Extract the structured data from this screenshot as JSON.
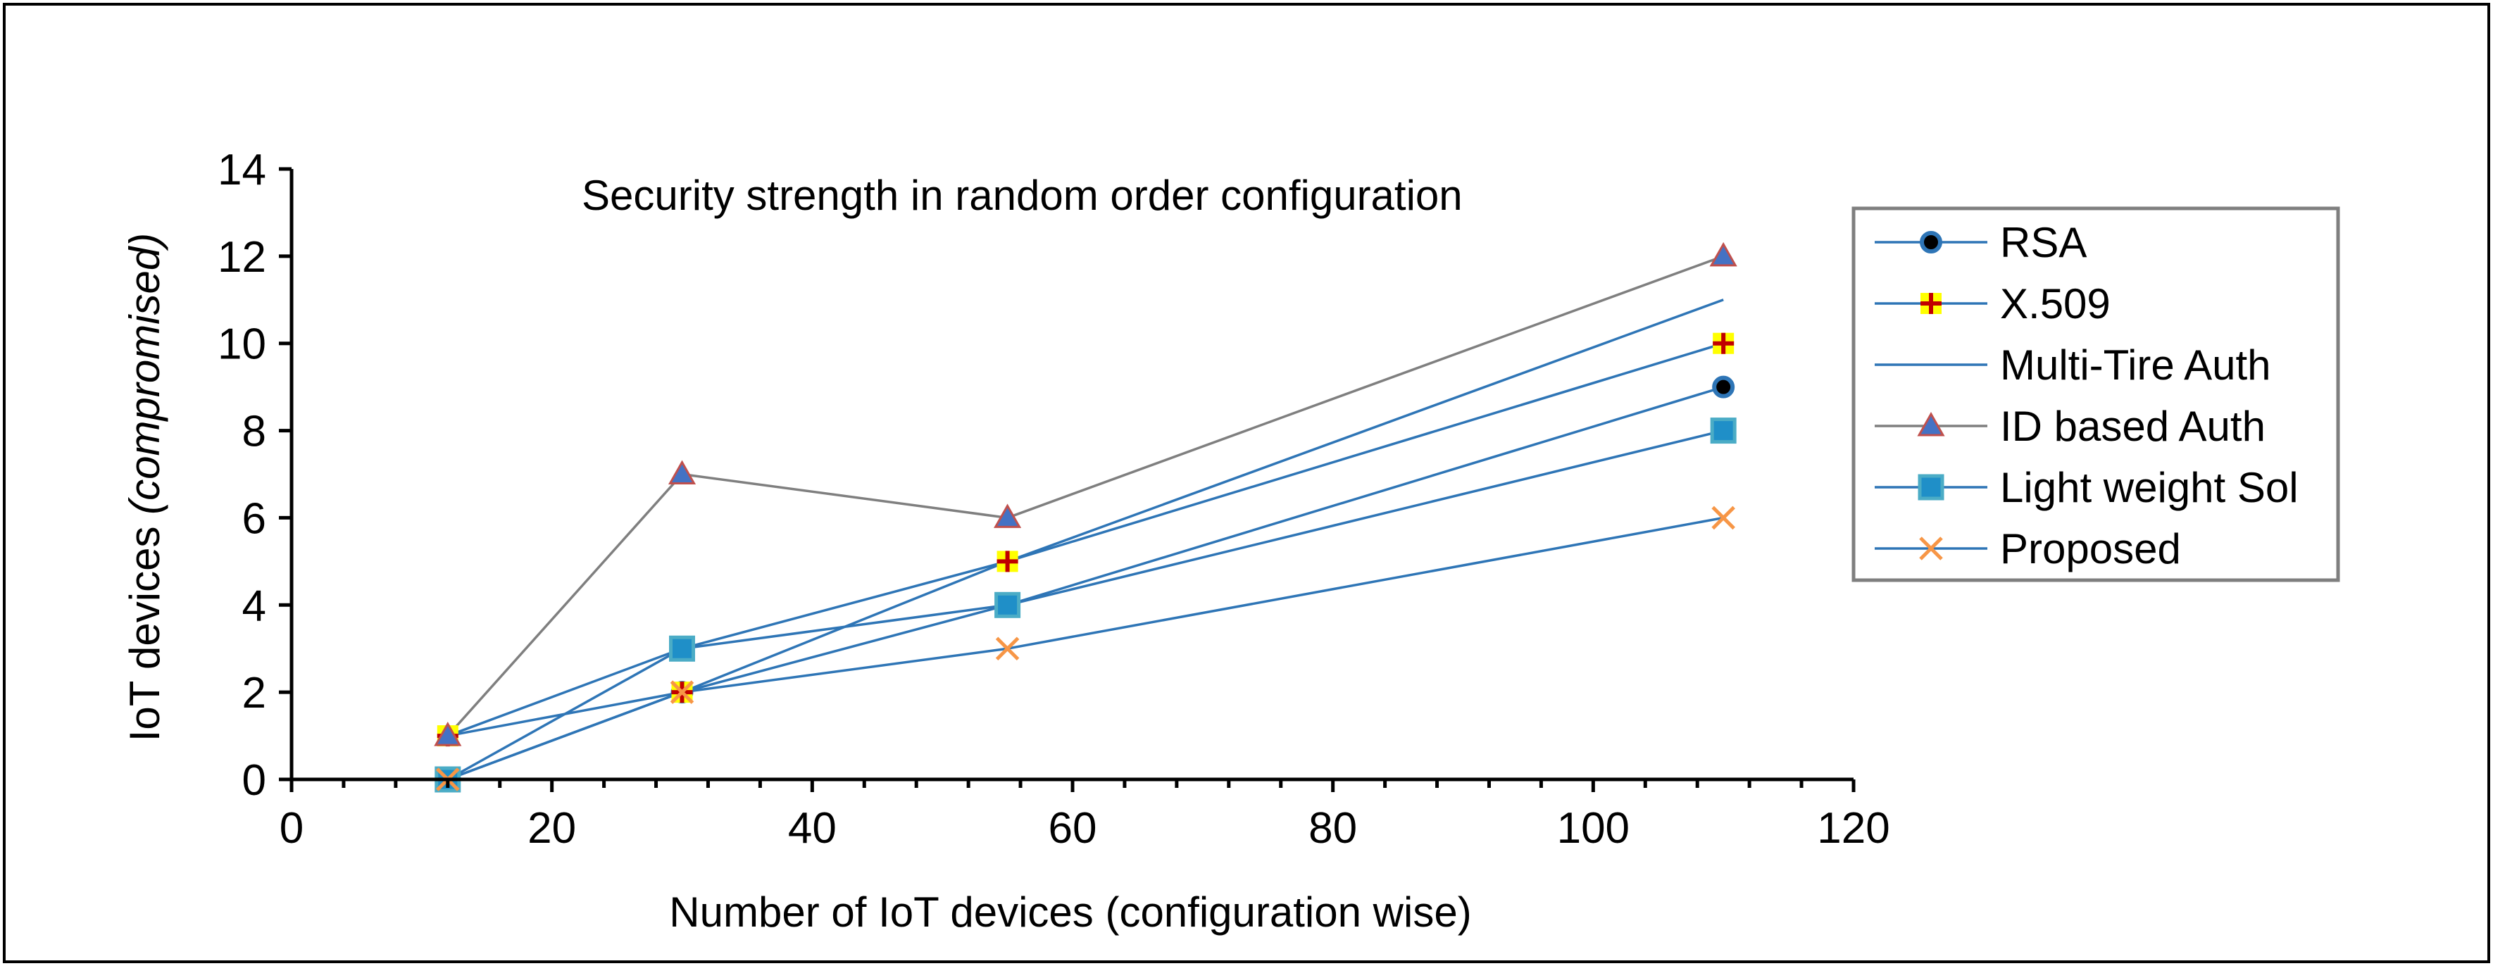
{
  "chart_data": {
    "type": "line",
    "title": "Security strength in random order configuration",
    "xlabel": "Number of IoT devices (configuration wise)",
    "ylabel_plain": "IoT devices ",
    "ylabel_italic": "(compromised)",
    "xlim": [
      0,
      120
    ],
    "ylim": [
      0,
      14
    ],
    "x_major_ticks": [
      0,
      20,
      40,
      60,
      80,
      100,
      120
    ],
    "x_minor_step": 4,
    "y_major_ticks": [
      0,
      2,
      4,
      6,
      8,
      10,
      12,
      14
    ],
    "x_tick_labels": [
      "0",
      "20",
      "40",
      "60",
      "80",
      "100",
      "120"
    ],
    "y_tick_labels": [
      "0",
      "2",
      "4",
      "6",
      "8",
      "10",
      "12",
      "14"
    ],
    "grid": false,
    "legend_position": "right",
    "x": [
      12,
      30,
      55,
      110
    ],
    "series": [
      {
        "name": "RSA",
        "x": [
          12,
          30,
          55,
          110
        ],
        "values": [
          0,
          2,
          4,
          9
        ],
        "marker": "circle",
        "line_color": "#2E75B6",
        "marker_fill": "#000000",
        "marker_edge": "#2E75B6"
      },
      {
        "name": "X.509",
        "x": [
          12,
          30,
          55,
          110
        ],
        "values": [
          1,
          2,
          5,
          10
        ],
        "marker": "plus",
        "line_color": "#2E75B6",
        "marker_fill": "#FFFF00",
        "marker_edge": "#C00000"
      },
      {
        "name": "Multi-Tire Auth",
        "x": [
          12,
          30,
          55,
          110
        ],
        "values": [
          1,
          3,
          5,
          11
        ],
        "marker": "none",
        "line_color": "#2E75B6"
      },
      {
        "name": "ID based Auth",
        "x": [
          12,
          30,
          55,
          110
        ],
        "values": [
          1,
          7,
          6,
          12
        ],
        "marker": "triangle",
        "line_color": "#7F7F7F",
        "marker_fill": "#4472C4",
        "marker_edge": "#C0504D"
      },
      {
        "name": "Light weight Sol",
        "x": [
          12,
          30,
          55,
          110
        ],
        "values": [
          0,
          3,
          4,
          8
        ],
        "marker": "square",
        "line_color": "#2E75B6",
        "marker_fill": "#1F8FC8",
        "marker_edge": "#4BACC6"
      },
      {
        "name": "Proposed",
        "x": [
          12,
          30,
          55,
          110
        ],
        "values": [
          0,
          2,
          3,
          6
        ],
        "marker": "x",
        "line_color": "#2E75B6",
        "marker_fill": "#F79646",
        "marker_edge": "#F79646"
      }
    ]
  }
}
